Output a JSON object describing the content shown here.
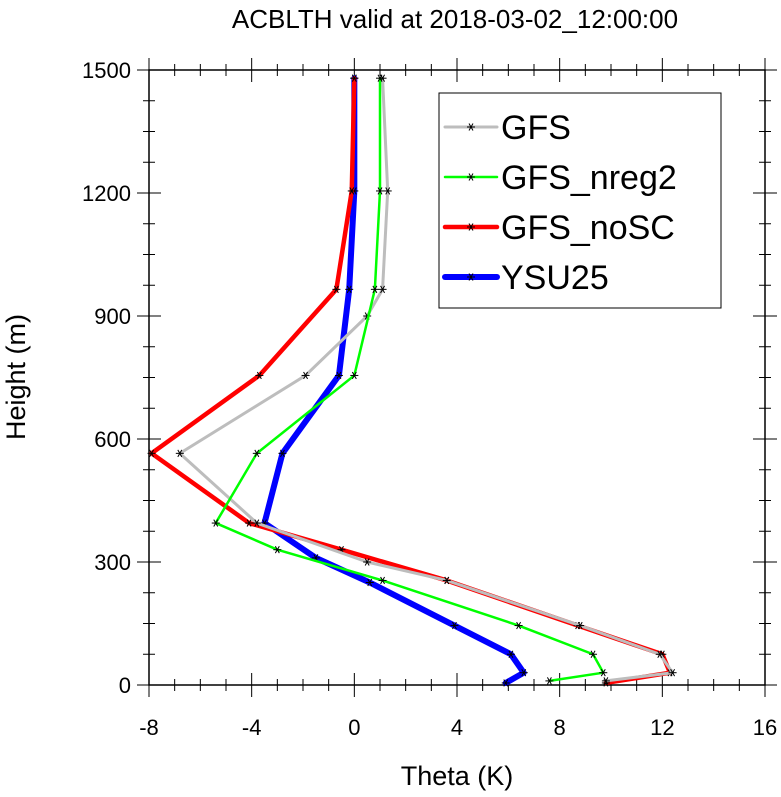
{
  "chart_data": {
    "type": "line",
    "title": "ACBLTH valid at 2018-03-02_12:00:00",
    "xlabel": "Theta (K)",
    "ylabel": "Height (m)",
    "xlim": [
      -8,
      16
    ],
    "ylim": [
      0,
      1500
    ],
    "x_ticks": [
      "-8",
      "-4",
      "0",
      "4",
      "8",
      "12",
      "16"
    ],
    "y_ticks": [
      "0",
      "300",
      "600",
      "900",
      "1200",
      "1500"
    ],
    "legend_position": "top-right",
    "grid": false,
    "series": [
      {
        "name": "GFS",
        "color": "#bdbdbd",
        "points": [
          [
            9.8,
            10
          ],
          [
            12.4,
            30
          ],
          [
            11.9,
            75
          ],
          [
            8.8,
            145
          ],
          [
            3.6,
            255
          ],
          [
            0.5,
            300
          ],
          [
            -3.8,
            395
          ],
          [
            -6.8,
            565
          ],
          [
            -1.9,
            755
          ],
          [
            0.5,
            900
          ],
          [
            1.1,
            965
          ],
          [
            1.3,
            1205
          ],
          [
            1.1,
            1480
          ]
        ]
      },
      {
        "name": "GFS_nreg2",
        "color": "#00ff00",
        "points": [
          [
            7.6,
            10
          ],
          [
            9.7,
            30
          ],
          [
            9.3,
            75
          ],
          [
            6.4,
            145
          ],
          [
            1.1,
            255
          ],
          [
            -3.0,
            330
          ],
          [
            -5.4,
            395
          ],
          [
            -3.8,
            565
          ],
          [
            0.0,
            755
          ],
          [
            0.8,
            965
          ],
          [
            1.0,
            1205
          ],
          [
            1.0,
            1480
          ]
        ]
      },
      {
        "name": "GFS_noSC",
        "color": "#ff0000",
        "points": [
          [
            9.8,
            5
          ],
          [
            12.3,
            30
          ],
          [
            12.0,
            75
          ],
          [
            8.7,
            145
          ],
          [
            3.6,
            255
          ],
          [
            -0.5,
            330
          ],
          [
            -4.1,
            395
          ],
          [
            -7.9,
            565
          ],
          [
            -3.7,
            755
          ],
          [
            -0.7,
            965
          ],
          [
            -0.1,
            1205
          ],
          [
            0.0,
            1480
          ]
        ]
      },
      {
        "name": "YSU25",
        "color": "#0000ff",
        "points": [
          [
            5.9,
            5
          ],
          [
            6.6,
            30
          ],
          [
            6.1,
            75
          ],
          [
            3.9,
            145
          ],
          [
            0.6,
            250
          ],
          [
            -1.5,
            310
          ],
          [
            -3.5,
            395
          ],
          [
            -2.8,
            565
          ],
          [
            -0.6,
            755
          ],
          [
            -0.2,
            965
          ],
          [
            0.0,
            1205
          ],
          [
            0.0,
            1480
          ]
        ]
      }
    ]
  }
}
